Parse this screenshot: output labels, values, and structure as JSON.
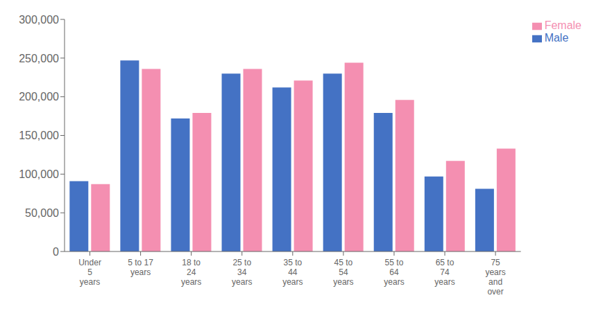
{
  "chart_data": {
    "type": "bar",
    "categories": [
      "Under\n5\nyears",
      "5 to 17\nyears",
      "18 to\n24\nyears",
      "25 to\n34\nyears",
      "35 to\n44\nyears",
      "45 to\n54\nyears",
      "55 to\n64\nyears",
      "65 to\n74\nyears",
      "75\nyears\nand\nover"
    ],
    "series": [
      {
        "name": "Male",
        "color": "#4472C4",
        "values": [
          91000,
          247000,
          172000,
          230000,
          212000,
          230000,
          179000,
          97000,
          81000
        ]
      },
      {
        "name": "Female",
        "color": "#F48FB1",
        "values": [
          87000,
          236000,
          179000,
          236000,
          221000,
          244000,
          196000,
          117000,
          133000
        ]
      }
    ],
    "ylim": [
      0,
      300000
    ],
    "yticks": [
      0,
      {
        "value": 50000,
        "label": "50,000"
      },
      {
        "value": 100000,
        "label": "100,000"
      },
      {
        "value": 150000,
        "label": "150,000"
      },
      {
        "value": 200000,
        "label": "200,000"
      },
      {
        "value": 250000,
        "label": "250,000"
      },
      {
        "value": 300000,
        "label": "300,000"
      }
    ],
    "grid": false,
    "legend": "right"
  }
}
